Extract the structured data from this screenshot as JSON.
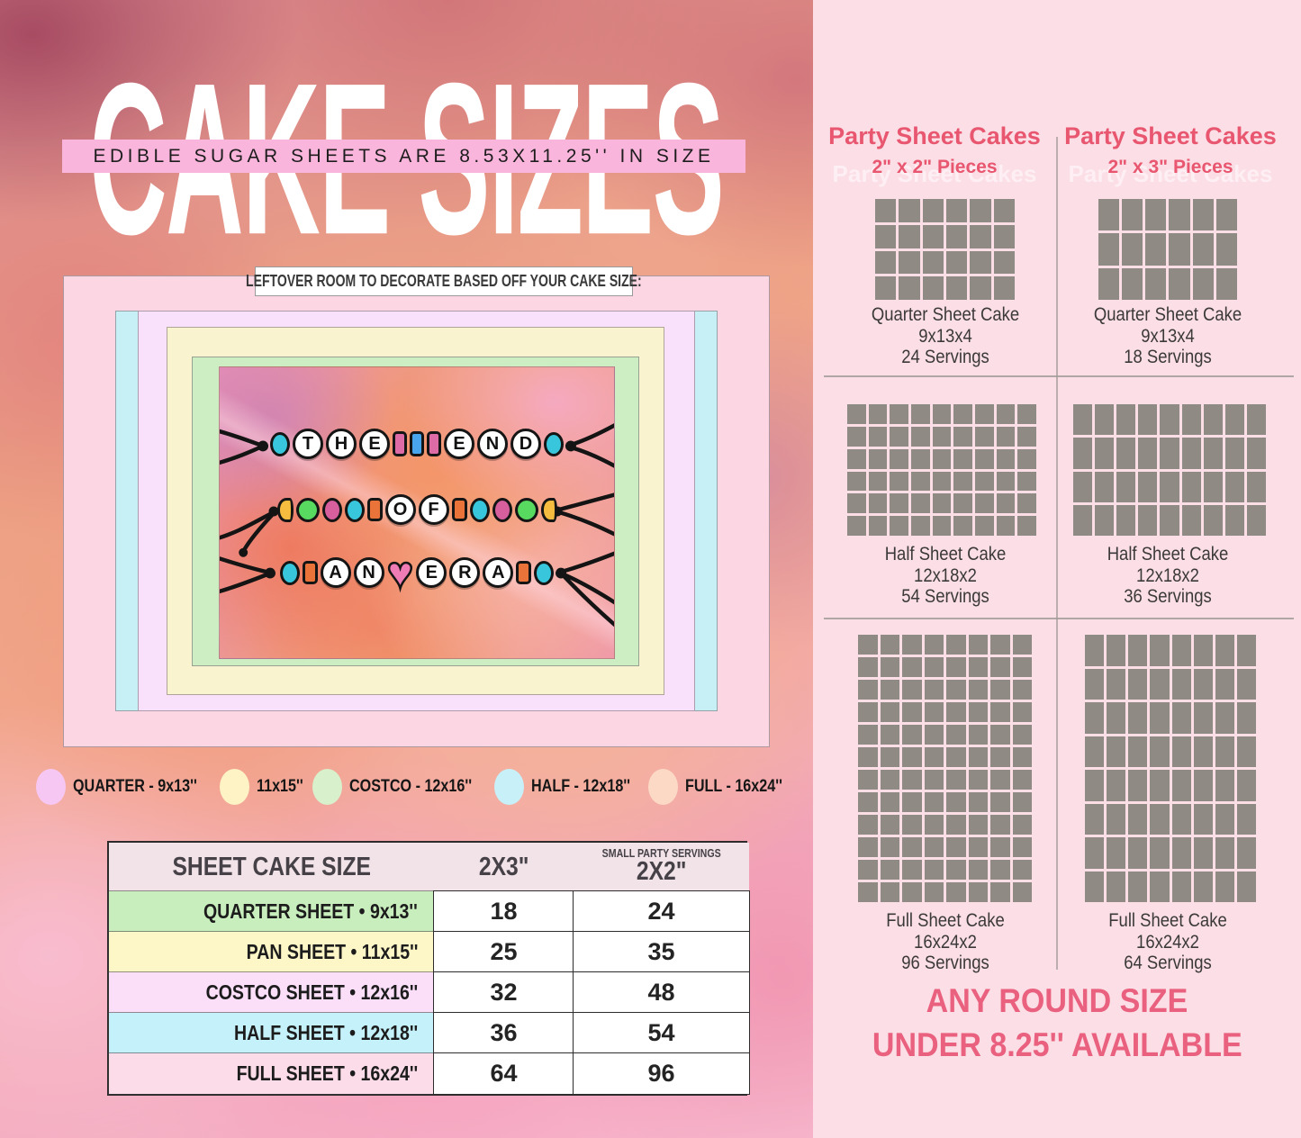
{
  "title": "CAKE SIZES",
  "banner": "EDIBLE SUGAR SHEETS ARE 8.53X11.25'' IN SIZE",
  "colors": {
    "banner_bg": "#fab5dc",
    "right_panel_bg": "#fbdee6",
    "table_header_bg": "#f1e3e8",
    "accent": "#e8566f",
    "footer_pink": "#ea617f",
    "grid_cell_gray": "#8f8a84"
  },
  "diagram": {
    "caption": "LEFTOVER ROOM TO DECORATE BASED OFF YOUR CAKE SIZE:",
    "layers": [
      {
        "name": "full-16x24",
        "color": "#fcd7e3"
      },
      {
        "name": "half-12x18",
        "color": "#c6f0f5"
      },
      {
        "name": "quarter-9x13",
        "color": "#fae1fb"
      },
      {
        "name": "pan-11x15",
        "color": "#f9f3d0"
      },
      {
        "name": "costco-12x16",
        "color": "#cdeec3"
      }
    ],
    "bracelets": [
      {
        "text": "THE END",
        "beads": [
          {
            "shape": "oval",
            "color": "#38c6dc"
          },
          {
            "shape": "letter",
            "ch": "T"
          },
          {
            "shape": "letter",
            "ch": "H"
          },
          {
            "shape": "letter",
            "ch": "E"
          },
          {
            "shape": "barrel",
            "color": "#dd6ba6"
          },
          {
            "shape": "barrel",
            "color": "#4aa6ec"
          },
          {
            "shape": "barrel",
            "color": "#dd6ba6"
          },
          {
            "shape": "letter",
            "ch": "E"
          },
          {
            "shape": "letter",
            "ch": "N"
          },
          {
            "shape": "letter",
            "ch": "D"
          },
          {
            "shape": "oval",
            "color": "#38c6dc"
          }
        ]
      },
      {
        "text": "OF",
        "beads": [
          {
            "shape": "half",
            "color": "#f6bc3f"
          },
          {
            "shape": "disc",
            "color": "#58d95f"
          },
          {
            "shape": "oval",
            "color": "#d75f9e"
          },
          {
            "shape": "oval",
            "color": "#38c6dc"
          },
          {
            "shape": "square",
            "color": "#e97339"
          },
          {
            "shape": "letter",
            "ch": "O"
          },
          {
            "shape": "letter",
            "ch": "F"
          },
          {
            "shape": "square",
            "color": "#e97339"
          },
          {
            "shape": "oval",
            "color": "#38c6dc"
          },
          {
            "shape": "oval",
            "color": "#d75f9e"
          },
          {
            "shape": "disc",
            "color": "#58d95f"
          },
          {
            "shape": "half",
            "color": "#f6bc3f"
          }
        ]
      },
      {
        "text": "AN ERA",
        "beads": [
          {
            "shape": "oval",
            "color": "#38c6dc"
          },
          {
            "shape": "square",
            "color": "#e97339"
          },
          {
            "shape": "letter",
            "ch": "A"
          },
          {
            "shape": "letter",
            "ch": "N"
          },
          {
            "shape": "heart",
            "color": "#f07cb5",
            "ch": "♥"
          },
          {
            "shape": "letter",
            "ch": "E"
          },
          {
            "shape": "letter",
            "ch": "R"
          },
          {
            "shape": "letter",
            "ch": "A"
          },
          {
            "shape": "square",
            "color": "#e97339"
          },
          {
            "shape": "oval",
            "color": "#38c6dc"
          }
        ]
      }
    ]
  },
  "legend": [
    {
      "label": "QUARTER - 9x13''",
      "color": "#f6c7f2"
    },
    {
      "label": "11x15''",
      "color": "#fdf3c5"
    },
    {
      "label": "COSTCO - 12x16''",
      "color": "#d9f0cd"
    },
    {
      "label": "HALF - 12x18''",
      "color": "#c8f0f8"
    },
    {
      "label": "FULL - 16x24''",
      "color": "#fbd9c5"
    }
  ],
  "servings_table": {
    "header": {
      "col1": "SHEET CAKE SIZE",
      "col2": "2X3\"",
      "col3_small": "SMALL PARTY SERVINGS",
      "col3": "2X2\""
    },
    "rows": [
      {
        "label": "QUARTER SHEET • 9x13''",
        "color": "#c9eebd",
        "v2x3": "18",
        "v2x2": "24"
      },
      {
        "label": "PAN SHEET • 11x15''",
        "color": "#fdf6c6",
        "v2x3": "25",
        "v2x2": "35"
      },
      {
        "label": "COSTCO SHEET • 12x16''",
        "color": "#fbdff9",
        "v2x3": "32",
        "v2x2": "48"
      },
      {
        "label": "HALF SHEET • 12x18''",
        "color": "#c5f1fa",
        "v2x3": "36",
        "v2x2": "54"
      },
      {
        "label": "FULL SHEET • 16x24''",
        "color": "#fcdce8",
        "v2x3": "64",
        "v2x2": "96"
      }
    ]
  },
  "right_panel": {
    "columns": [
      {
        "title": "Party Sheet Cakes",
        "subtitle": "2\" x 2\" Pieces"
      },
      {
        "title": "Party Sheet Cakes",
        "subtitle": "2\" x 3\" Pieces"
      }
    ],
    "cells": [
      {
        "name": "Quarter Sheet Cake",
        "size": "9x13x4",
        "servings": "24 Servings",
        "cols": 6,
        "rows": 4
      },
      {
        "name": "Quarter Sheet Cake",
        "size": "9x13x4",
        "servings": "18 Servings",
        "cols": 6,
        "rows": 3
      },
      {
        "name": "Half Sheet Cake",
        "size": "12x18x2",
        "servings": "54 Servings",
        "cols": 9,
        "rows": 6
      },
      {
        "name": "Half Sheet Cake",
        "size": "12x18x2",
        "servings": "36 Servings",
        "cols": 9,
        "rows": 4
      },
      {
        "name": "Full Sheet Cake",
        "size": "16x24x2",
        "servings": "96 Servings",
        "cols": 8,
        "rows": 12
      },
      {
        "name": "Full Sheet Cake",
        "size": "16x24x2",
        "servings": "64 Servings",
        "cols": 8,
        "rows": 8
      }
    ],
    "footer_line1": "ANY ROUND SIZE",
    "footer_line2": "UNDER 8.25'' AVAILABLE"
  }
}
